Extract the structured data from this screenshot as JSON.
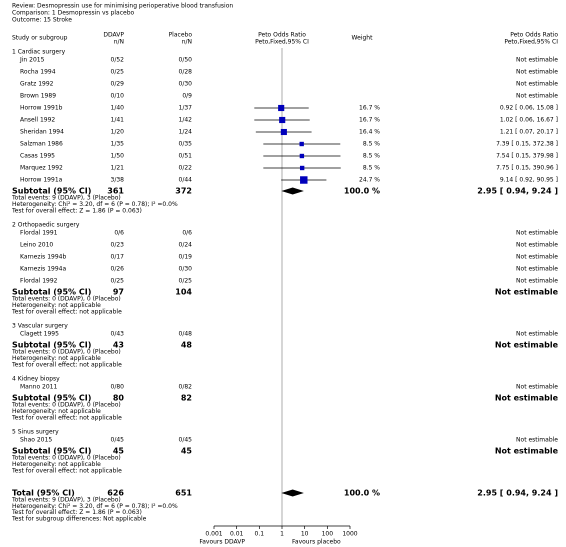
{
  "chart_data": {
    "type": "forest",
    "review": "Review:  Desmopressin use for minimising perioperative blood transfusion",
    "comparison": "Comparison: 1 Desmopressin vs placebo",
    "outcome": "Outcome: 15 Stroke",
    "columns": {
      "study": "Study or subgroup",
      "treatment": "DDAVP",
      "treatment_unit": "n/N",
      "control": "Placebo",
      "control_unit": "n/N",
      "plot_header": "Peto Odds Ratio",
      "plot_subheader": "Peto,Fixed,95% CI",
      "weight": "Weight",
      "estimate_header": "Peto Odds Ratio",
      "estimate_subheader": "Peto,Fixed,95% CI"
    },
    "groups": [
      {
        "title": "1 Cardiac surgery",
        "studies": [
          {
            "name": "Jin 2015",
            "treatment": "0/52",
            "control": "0/50",
            "estimate": "Not estimable"
          },
          {
            "name": "Rocha 1994",
            "treatment": "0/25",
            "control": "0/28",
            "estimate": "Not estimable"
          },
          {
            "name": "Gratz 1992",
            "treatment": "0/29",
            "control": "0/30",
            "estimate": "Not estimable"
          },
          {
            "name": "Brown 1989",
            "treatment": "0/10",
            "control": "0/9",
            "estimate": "Not estimable"
          },
          {
            "name": "Horrow 1991b",
            "treatment": "1/40",
            "control": "1/37",
            "weight": 16.7,
            "weight_label": "16.7 %",
            "or": 0.92,
            "lo": 0.06,
            "hi": 15.08,
            "estimate": "0.92 [ 0.06, 15.08 ]"
          },
          {
            "name": "Ansell 1992",
            "treatment": "1/41",
            "control": "1/42",
            "weight": 16.7,
            "weight_label": "16.7 %",
            "or": 1.02,
            "lo": 0.06,
            "hi": 16.67,
            "estimate": "1.02 [ 0.06, 16.67 ]"
          },
          {
            "name": "Sheridan 1994",
            "treatment": "1/20",
            "control": "1/24",
            "weight": 16.4,
            "weight_label": "16.4 %",
            "or": 1.21,
            "lo": 0.07,
            "hi": 20.17,
            "estimate": "1.21 [ 0.07, 20.17 ]"
          },
          {
            "name": "Salzman 1986",
            "treatment": "1/35",
            "control": "0/35",
            "weight": 8.5,
            "weight_label": "8.5 %",
            "or": 7.39,
            "lo": 0.15,
            "hi": 372.38,
            "estimate": "7.39 [ 0.15, 372.38 ]"
          },
          {
            "name": "Casas 1995",
            "treatment": "1/50",
            "control": "0/51",
            "weight": 8.5,
            "weight_label": "8.5 %",
            "or": 7.54,
            "lo": 0.15,
            "hi": 379.98,
            "estimate": "7.54 [ 0.15, 379.98 ]"
          },
          {
            "name": "Marquez 1992",
            "treatment": "1/21",
            "control": "0/22",
            "weight": 8.5,
            "weight_label": "8.5 %",
            "or": 7.75,
            "lo": 0.15,
            "hi": 390.96,
            "estimate": "7.75 [ 0.15, 390.96 ]"
          },
          {
            "name": "Horrow 1991a",
            "treatment": "3/38",
            "control": "0/44",
            "weight": 24.7,
            "weight_label": "24.7 %",
            "or": 9.14,
            "lo": 0.92,
            "hi": 90.95,
            "estimate": "9.14 [ 0.92, 90.95 ]"
          }
        ],
        "subtotal": {
          "label": "Subtotal (95% CI)",
          "treatment": 361,
          "control": 372,
          "weight": 100.0,
          "weight_label": "100.0 %",
          "or": 2.95,
          "lo": 0.94,
          "hi": 9.24,
          "estimate": "2.95 [ 0.94, 9.24 ]"
        },
        "notes": [
          "Total events: 9 (DDAVP), 3 (Placebo)",
          "Heterogeneity: Chi² = 3.20, df = 6 (P = 0.78); I² =0.0%",
          "Test for overall effect: Z = 1.86 (P = 0.063)"
        ]
      },
      {
        "title": "2 Orthopaedic surgery",
        "studies": [
          {
            "name": "Flordal 1991",
            "treatment": "0/6",
            "control": "0/6",
            "estimate": "Not estimable"
          },
          {
            "name": "Leino 2010",
            "treatment": "0/23",
            "control": "0/24",
            "estimate": "Not estimable"
          },
          {
            "name": "Karnezis 1994b",
            "treatment": "0/17",
            "control": "0/19",
            "estimate": "Not estimable"
          },
          {
            "name": "Karnezis 1994a",
            "treatment": "0/26",
            "control": "0/30",
            "estimate": "Not estimable"
          },
          {
            "name": "Flordal 1992",
            "treatment": "0/25",
            "control": "0/25",
            "estimate": "Not estimable"
          }
        ],
        "subtotal": {
          "label": "Subtotal (95% CI)",
          "treatment": 97,
          "control": 104,
          "estimate": "Not estimable"
        },
        "notes": [
          "Total events: 0 (DDAVP), 0 (Placebo)",
          "Heterogeneity: not applicable",
          "Test for overall effect: not applicable"
        ]
      },
      {
        "title": "3 Vascular surgery",
        "studies": [
          {
            "name": "Clagett 1995",
            "treatment": "0/43",
            "control": "0/48",
            "estimate": "Not estimable"
          }
        ],
        "subtotal": {
          "label": "Subtotal (95% CI)",
          "treatment": 43,
          "control": 48,
          "estimate": "Not estimable"
        },
        "notes": [
          "Total events: 0 (DDAVP), 0 (Placebo)",
          "Heterogeneity: not applicable",
          "Test for overall effect: not applicable"
        ]
      },
      {
        "title": "4 Kidney biopsy",
        "studies": [
          {
            "name": "Manno 2011",
            "treatment": "0/80",
            "control": "0/82",
            "estimate": "Not estimable"
          }
        ],
        "subtotal": {
          "label": "Subtotal (95% CI)",
          "treatment": 80,
          "control": 82,
          "estimate": "Not estimable"
        },
        "notes": [
          "Total events: 0 (DDAVP), 0 (Placebo)",
          "Heterogeneity: not applicable",
          "Test for overall effect: not applicable"
        ]
      },
      {
        "title": "5 Sinus surgery",
        "studies": [
          {
            "name": "Shao 2015",
            "treatment": "0/45",
            "control": "0/45",
            "estimate": "Not estimable"
          }
        ],
        "subtotal": {
          "label": "Subtotal (95% CI)",
          "treatment": 45,
          "control": 45,
          "estimate": "Not estimable"
        },
        "notes": [
          "Total events: 0 (DDAVP), 0 (Placebo)",
          "Heterogeneity: not applicable",
          "Test for overall effect: not applicable"
        ]
      }
    ],
    "total": {
      "label": "Total (95% CI)",
      "treatment": 626,
      "control": 651,
      "weight": 100.0,
      "weight_label": "100.0 %",
      "or": 2.95,
      "lo": 0.94,
      "hi": 9.24,
      "estimate": "2.95 [ 0.94, 9.24 ]",
      "notes": [
        "Total events: 9 (DDAVP), 3 (Placebo)",
        "Heterogeneity: Chi² = 3.20, df = 6 (P = 0.78); I² =0.0%",
        "Test for overall effect: Z = 1.86 (P = 0.063)",
        "Test for subgroup differences: Not applicable"
      ]
    },
    "xlim": [
      0.001,
      1000
    ],
    "xticks": [
      0.001,
      0.01,
      0.1,
      1,
      10,
      100,
      1000
    ],
    "log_scale": true,
    "favours_left": "Favours DDAVP",
    "favours_right": "Favours placebo",
    "color": "#0000bb"
  }
}
